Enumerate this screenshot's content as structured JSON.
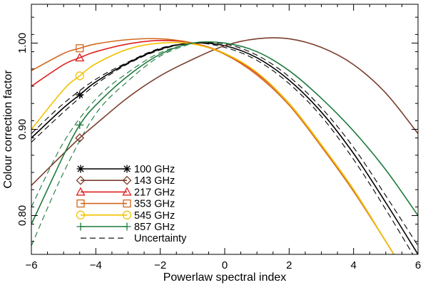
{
  "chart_data": {
    "type": "line",
    "title": "",
    "xlabel": "Powerlaw spectral index",
    "ylabel": "Colour correction factor",
    "xlim": [
      -6,
      6
    ],
    "ylim": [
      0.755,
      1.045
    ],
    "x_ticks": [
      -6,
      -4,
      -2,
      0,
      2,
      4,
      6
    ],
    "x_tick_labels": [
      "−6",
      "−4",
      "−2",
      "0",
      "2",
      "4",
      "6"
    ],
    "y_ticks": [
      0.8,
      0.9,
      1.0
    ],
    "y_tick_labels": [
      "0.80",
      "0.90",
      "1.00"
    ],
    "grid": false,
    "legend_position": "bottom-left",
    "series": [
      {
        "name": "100 GHz",
        "color": "#000000",
        "marker": "asterisk",
        "marker_x": -4.5,
        "x": [
          -6,
          -5,
          -4.5,
          -4,
          -3,
          -2,
          -1,
          0,
          1,
          2,
          3,
          4,
          5,
          6
        ],
        "y": [
          0.89,
          0.925,
          0.94,
          0.955,
          0.977,
          0.993,
          1.0,
          0.997,
          0.983,
          0.957,
          0.92,
          0.872,
          0.815,
          0.755
        ]
      },
      {
        "name": "143 GHz",
        "color": "#7b3f2e",
        "marker": "diamond",
        "marker_x": -4.5,
        "x": [
          -6,
          -5,
          -4.5,
          -4,
          -3,
          -2,
          -1,
          0,
          1,
          2,
          3,
          4,
          5,
          6
        ],
        "y": [
          0.835,
          0.872,
          0.89,
          0.906,
          0.937,
          0.962,
          0.981,
          0.997,
          1.005,
          1.005,
          0.995,
          0.975,
          0.942,
          0.895
        ]
      },
      {
        "name": "217 GHz",
        "color": "#e02020",
        "marker": "triangle",
        "marker_x": -4.5,
        "x": [
          -6,
          -5,
          -4.5,
          -4,
          -3,
          -2,
          -1,
          0,
          1,
          2,
          3,
          4,
          5,
          6
        ],
        "y": [
          0.95,
          0.975,
          0.983,
          0.99,
          0.999,
          1.003,
          1.0,
          0.988,
          0.965,
          0.93,
          0.882,
          0.83,
          0.77,
          0.71
        ]
      },
      {
        "name": "353 GHz",
        "color": "#d2691e",
        "marker": "square",
        "marker_x": -4.5,
        "x": [
          -6,
          -5,
          -4.5,
          -4,
          -3,
          -2,
          -1,
          0,
          1,
          2,
          3,
          4,
          5,
          6
        ],
        "y": [
          0.968,
          0.988,
          0.994,
          0.999,
          1.004,
          1.005,
          1.0,
          0.987,
          0.963,
          0.928,
          0.88,
          0.828,
          0.77,
          0.71
        ]
      },
      {
        "name": "545 GHz",
        "color": "#f2c200",
        "marker": "circle",
        "marker_x": -4.5,
        "x": [
          -6,
          -5,
          -4.5,
          -4,
          -3,
          -2,
          -1,
          0,
          1,
          2,
          3,
          4,
          5,
          6
        ],
        "y": [
          0.9,
          0.946,
          0.962,
          0.976,
          0.993,
          1.0,
          0.999,
          0.988,
          0.966,
          0.93,
          0.882,
          0.83,
          0.77,
          0.71
        ]
      },
      {
        "name": "857 GHz",
        "color": "#1e7a3c",
        "marker": "plus",
        "marker_x": -4.5,
        "x": [
          -6,
          -5,
          -4.5,
          -4,
          -3,
          -2,
          -1,
          0,
          1,
          2,
          3,
          4,
          5,
          6
        ],
        "y": [
          0.79,
          0.87,
          0.905,
          0.928,
          0.962,
          0.987,
          1.0,
          1.0,
          0.99,
          0.968,
          0.936,
          0.898,
          0.853,
          0.8
        ]
      }
    ],
    "uncertainty": {
      "name": "Uncertainty",
      "style": "dashed",
      "color": "#000000",
      "bands": [
        {
          "color": "#000000",
          "x": [
            -6,
            -5,
            -4,
            -3,
            -2,
            -1,
            0,
            1,
            2,
            3,
            4,
            5,
            6
          ],
          "upper": [
            0.895,
            0.93,
            0.958,
            0.978,
            0.994,
            1.0,
            0.999,
            0.986,
            0.961,
            0.925,
            0.879,
            0.823,
            0.765
          ],
          "lower": [
            0.885,
            0.92,
            0.952,
            0.976,
            0.992,
            1.0,
            0.995,
            0.98,
            0.953,
            0.915,
            0.865,
            0.807,
            0.745
          ]
        },
        {
          "color": "#1e7a3c",
          "x": [
            -6,
            -5,
            -4,
            -3,
            -2,
            -1
          ],
          "upper": [
            0.81,
            0.885,
            0.935,
            0.966,
            0.989,
            1.0
          ],
          "lower": [
            0.765,
            0.85,
            0.918,
            0.956,
            0.985,
            1.0
          ]
        }
      ]
    }
  }
}
